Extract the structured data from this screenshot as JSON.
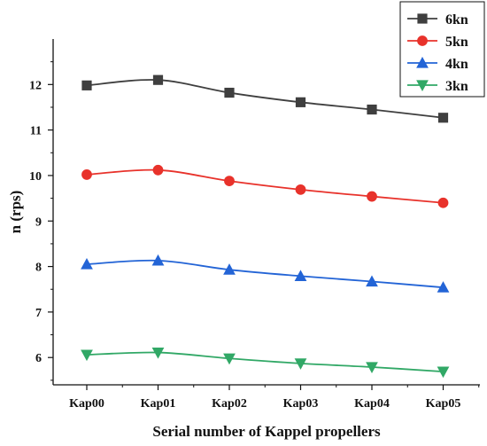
{
  "chart_data": {
    "type": "line",
    "title": "",
    "xlabel": "Serial number of Kappel propellers",
    "ylabel": "n (rps)",
    "categories": [
      "Kap00",
      "Kap01",
      "Kap02",
      "Kap03",
      "Kap04",
      "Kap05"
    ],
    "ylim": [
      5.4,
      13.0
    ],
    "yticks": [
      "6",
      "7",
      "8",
      "9",
      "10",
      "11",
      "12"
    ],
    "grid": false,
    "legend_position": "top-right",
    "series": [
      {
        "name": "6kn",
        "values": [
          11.98,
          12.1,
          11.82,
          11.61,
          11.45,
          11.27
        ],
        "color": "#3f3f3f",
        "marker": "square"
      },
      {
        "name": "5kn",
        "values": [
          10.02,
          10.12,
          9.88,
          9.69,
          9.54,
          9.4
        ],
        "color": "#e8322b",
        "marker": "circle"
      },
      {
        "name": "4kn",
        "values": [
          8.05,
          8.13,
          7.93,
          7.79,
          7.67,
          7.54
        ],
        "color": "#2364d6",
        "marker": "triangle-up"
      },
      {
        "name": "3kn",
        "values": [
          6.06,
          6.11,
          5.98,
          5.87,
          5.79,
          5.69
        ],
        "color": "#31a866",
        "marker": "triangle-down"
      }
    ]
  }
}
